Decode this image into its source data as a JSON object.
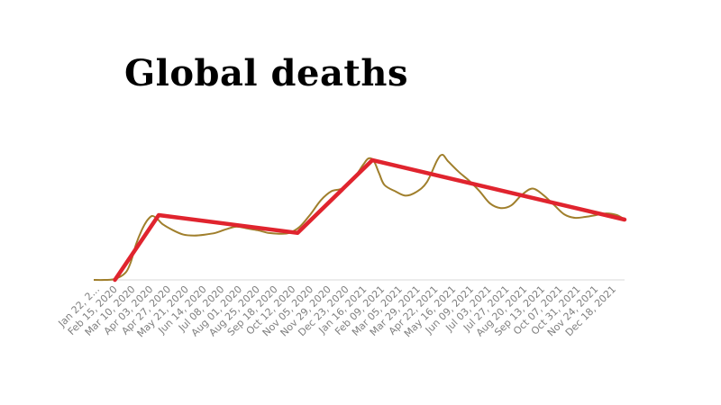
{
  "chart_data": {
    "type": "line",
    "title": "Global deaths",
    "xlabel": "",
    "ylabel": "",
    "grid": false,
    "legend": "none",
    "colors": {
      "series": "#a07f2c",
      "trend": "#e0242e",
      "axis": "#d9d9d9",
      "ticks": "#7f7f7f"
    },
    "x_ticks": [
      "Jan 22, 2...",
      "Feb 15, 2020",
      "Mar 10, 2020",
      "Apr 03, 2020",
      "Apr 27, 2020",
      "May 21, 2020",
      "Jun 14, 2020",
      "Jul 08, 2020",
      "Aug 01, 2020",
      "Aug 25, 2020",
      "Sep 18, 2020",
      "Oct 12, 2020",
      "Nov 05, 2020",
      "Nov 29, 2020",
      "Dec 23, 2020",
      "Jan 16, 2021",
      "Feb 09, 2021",
      "Mar 05, 2021",
      "Mar 29, 2021",
      "Apr 22, 2021",
      "May 16, 2021",
      "Jun 09, 2021",
      "Jul 03, 2021",
      "Jul 27, 2021",
      "Aug 20, 2021",
      "Sep 13, 2021",
      "Oct 07, 2021",
      "Oct 31, 2021",
      "Nov 24, 2021",
      "Dec 18, 2021"
    ],
    "series": [
      {
        "x": [
          "2020-01-22",
          "2020-02-05",
          "2020-02-19",
          "2020-03-04",
          "2020-03-11",
          "2020-03-18",
          "2020-03-25",
          "2020-04-01",
          "2020-04-08",
          "2020-04-15",
          "2020-04-22",
          "2020-05-06",
          "2020-05-20",
          "2020-06-03",
          "2020-06-17",
          "2020-07-01",
          "2020-07-15",
          "2020-07-29",
          "2020-08-12",
          "2020-08-26",
          "2020-09-09",
          "2020-09-23",
          "2020-10-07",
          "2020-10-21",
          "2020-11-04",
          "2020-11-18",
          "2020-12-02",
          "2020-12-16",
          "2020-12-30",
          "2021-01-13",
          "2021-01-20",
          "2021-01-27",
          "2021-02-03",
          "2021-02-10",
          "2021-02-24",
          "2021-03-10",
          "2021-03-24",
          "2021-04-07",
          "2021-04-21",
          "2021-04-28",
          "2021-05-05",
          "2021-05-19",
          "2021-06-02",
          "2021-06-16",
          "2021-06-30",
          "2021-07-14",
          "2021-07-28",
          "2021-08-11",
          "2021-08-25",
          "2021-09-08",
          "2021-09-22",
          "2021-10-06",
          "2021-10-20",
          "2021-11-03",
          "2021-11-17",
          "2021-12-01",
          "2021-12-15",
          "2021-12-25"
        ],
        "values": [
          0,
          0,
          100,
          800,
          2000,
          4000,
          5500,
          6600,
          7200,
          6900,
          6300,
          5600,
          5100,
          5000,
          5100,
          5300,
          5700,
          6000,
          5800,
          5600,
          5300,
          5200,
          5300,
          6000,
          7400,
          9000,
          10000,
          10300,
          11300,
          13000,
          13700,
          13400,
          12000,
          10700,
          10000,
          9500,
          9900,
          11000,
          13500,
          14100,
          13400,
          12200,
          11200,
          10000,
          8600,
          8100,
          8400,
          9600,
          10300,
          9600,
          8500,
          7400,
          7000,
          7100,
          7300,
          7500,
          7300,
          6800
        ]
      },
      {
        "x": [
          "2020-02-19",
          "2020-04-17",
          "2020-10-18",
          "2021-01-25",
          "2021-12-25"
        ],
        "values": [
          0,
          7300,
          5300,
          13500,
          6800
        ]
      }
    ],
    "xlim": [
      "2020-01-22",
      "2021-12-25"
    ],
    "ylim": [
      0,
      14000
    ]
  }
}
